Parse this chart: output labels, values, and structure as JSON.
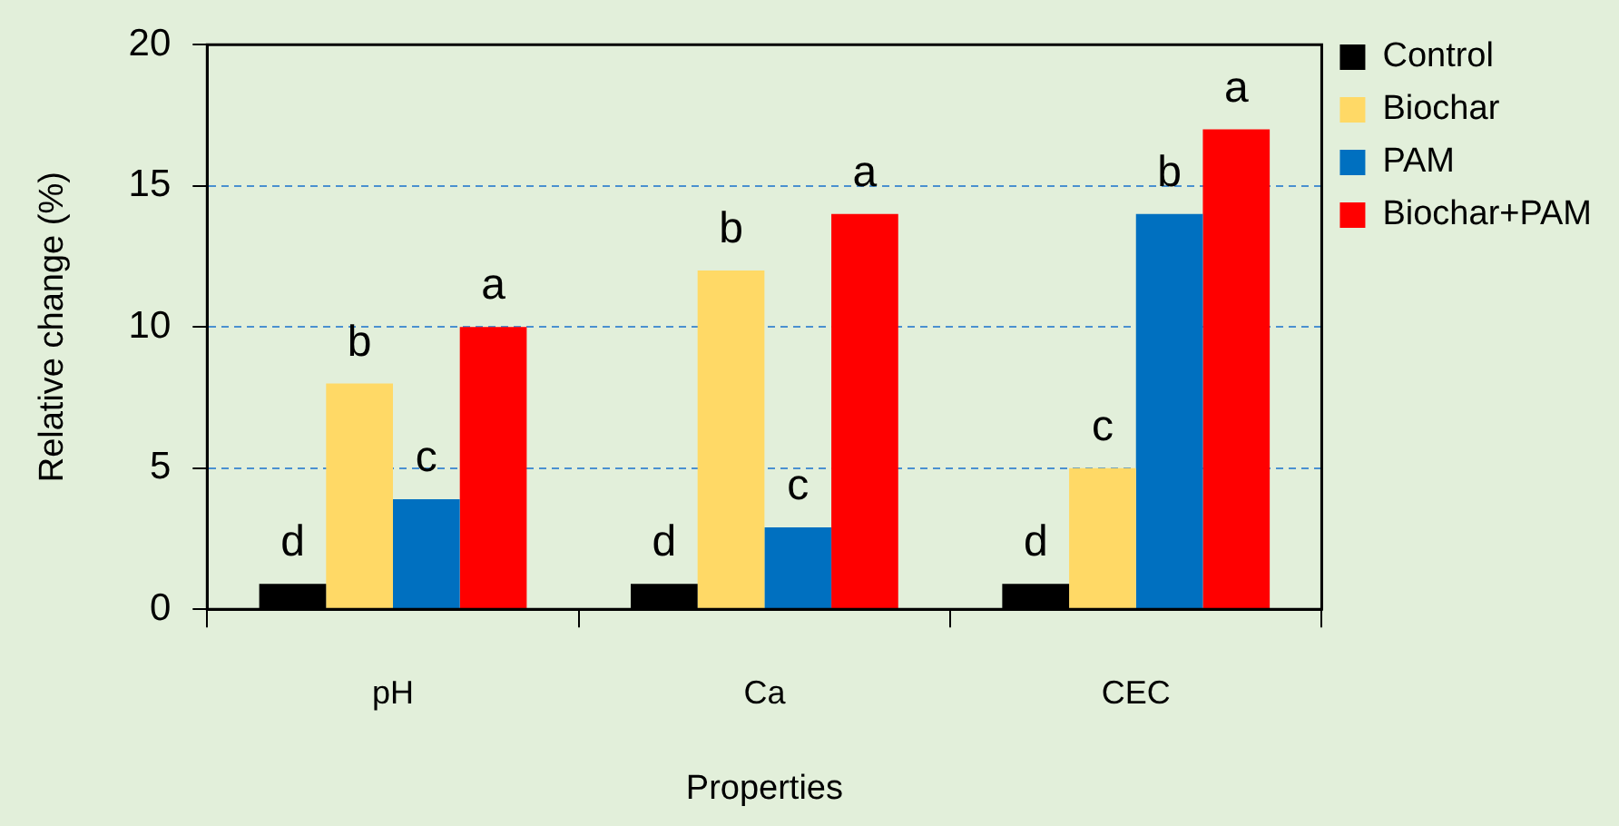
{
  "chart_data": {
    "type": "bar",
    "xlabel": "Properties",
    "ylabel": "Relative change (%)",
    "categories": [
      "pH",
      "Ca",
      "CEC"
    ],
    "series": [
      {
        "name": "Control",
        "color": "#000000",
        "values": [
          0.9,
          0.9,
          0.9
        ],
        "value_labels": [
          "d",
          "d",
          "d"
        ]
      },
      {
        "name": "Biochar",
        "color": "#ffd966",
        "values": [
          8,
          12,
          5
        ],
        "value_labels": [
          "b",
          "b",
          "c"
        ]
      },
      {
        "name": "PAM",
        "color": "#0070c0",
        "values": [
          3.9,
          2.9,
          14
        ],
        "value_labels": [
          "c",
          "c",
          "b"
        ]
      },
      {
        "name": "Biochar+PAM",
        "color": "#ff0000",
        "values": [
          10,
          14,
          17
        ],
        "value_labels": [
          "a",
          "a",
          "a"
        ]
      }
    ],
    "ylim": [
      0,
      20
    ],
    "yticks": [
      0,
      5,
      10,
      15,
      20
    ],
    "grid": "y",
    "legend": "right"
  }
}
